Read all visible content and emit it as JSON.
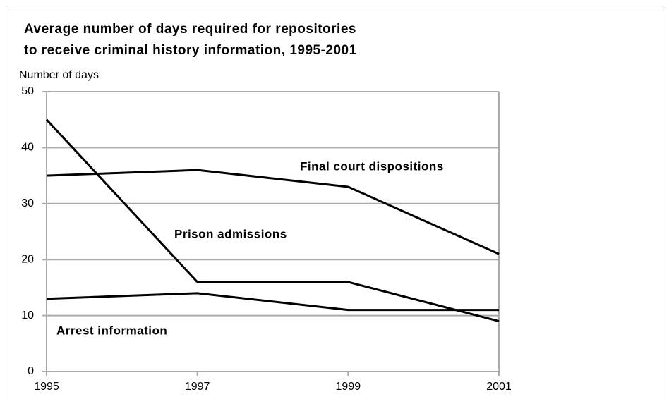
{
  "chart_data": {
    "type": "line",
    "title": [
      "Average number of days required for repositories",
      "to receive criminal history information, 1995-2001"
    ],
    "y_label": "Number of days",
    "x": [
      1995,
      1997,
      1999,
      2001
    ],
    "xlim": [
      1995,
      2001
    ],
    "xticks": [
      1995,
      1997,
      1999,
      2001
    ],
    "ylim": [
      0,
      50
    ],
    "yticks": [
      0,
      10,
      20,
      30,
      40,
      50
    ],
    "grid": true,
    "series": [
      {
        "name": "Final court dispositions",
        "color": "#000000",
        "values": [
          35,
          36,
          33,
          21
        ]
      },
      {
        "name": "Prison admissions",
        "color": "#000000",
        "values": [
          45,
          16,
          16,
          9
        ]
      },
      {
        "name": "Arrest information",
        "color": "#000000",
        "values": [
          13,
          14,
          11,
          11
        ]
      }
    ]
  }
}
